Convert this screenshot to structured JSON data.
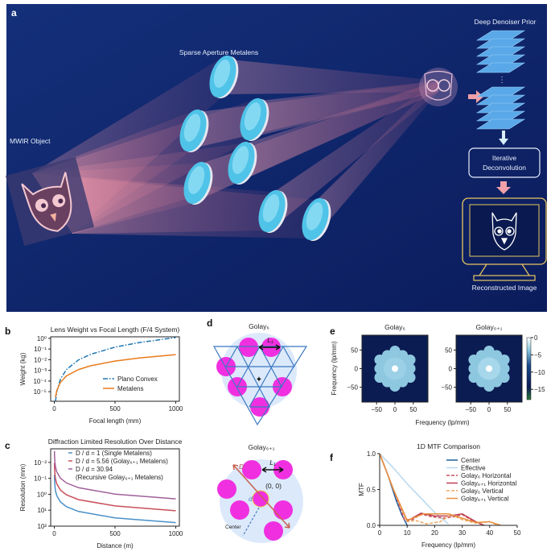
{
  "panel_a": {
    "label": "a",
    "object_label": "MWIR Object",
    "lens_label": "Sparse Aperture Metalens",
    "prior_label": "Deep Denoiser Prior",
    "ellipsis": "⋮",
    "deconv_label_1": "Iterative",
    "deconv_label_2": "Deconvolution",
    "output_label": "Reconstructed Image",
    "colors": {
      "background": "#10246a",
      "lens": "#4fc3e8",
      "arrow": "#f0a0a8",
      "monitor": "#e8c860",
      "layer": "#5aa8e8"
    }
  },
  "panel_d": {
    "label": "d",
    "golay6_title": "Golay₆",
    "golay61_title": "Golay₆₊₁",
    "l1_label": "L₁",
    "origin_label": "(0, 0)",
    "D_label": "D",
    "d_label": "d",
    "center_label": "Center",
    "colors": {
      "aperture": "#f030e0",
      "disk": "#dce9fb",
      "grid": "#3a78c0",
      "diag": "#c86050"
    }
  },
  "chart_data": [
    {
      "id": "b",
      "panel_label": "b",
      "type": "line",
      "title": "Lens Weight vs Focal Length (F/4 System)",
      "xlabel": "Focal length (mm)",
      "ylabel": "Weight (kg)",
      "xlim": [
        -30,
        1030
      ],
      "ylim": [
        1.26e-06,
        1.4
      ],
      "yscale": "log",
      "xticks": [
        {
          "v": 0,
          "t": "0"
        },
        {
          "v": 500,
          "t": "500"
        },
        {
          "v": 1000,
          "t": "1000"
        }
      ],
      "yticks": [
        {
          "v": 1,
          "t": "10⁰"
        },
        {
          "v": 0.1,
          "t": "10⁻¹"
        },
        {
          "v": 0.01,
          "t": "10⁻²"
        },
        {
          "v": 0.001,
          "t": "10⁻³"
        },
        {
          "v": 0.0001,
          "t": "10⁻⁴"
        },
        {
          "v": 1e-05,
          "t": "10⁻⁵"
        }
      ],
      "legend": "bottom-right",
      "series": [
        {
          "name": "Plano Convex",
          "color": "#1f77b4",
          "dash": "dashdot",
          "x": [
            10,
            20,
            50,
            100,
            200,
            300,
            500,
            700,
            1000
          ],
          "y": [
            1.2e-06,
            9.6e-06,
            0.00015,
            0.0012,
            0.0096,
            0.032,
            0.15,
            0.41,
            1.2
          ]
        },
        {
          "name": "Metalens",
          "color": "#e87b1c",
          "dash": "solid",
          "x": [
            10,
            20,
            50,
            100,
            200,
            300,
            500,
            700,
            1000
          ],
          "y": [
            3e-06,
            1.2e-05,
            7.5e-05,
            0.0003,
            0.0012,
            0.0027,
            0.0075,
            0.0147,
            0.03
          ]
        }
      ]
    },
    {
      "id": "c",
      "panel_label": "c",
      "type": "line",
      "title": "Diffraction Limited Resolution Over Distance",
      "xlabel": "Distance (m)",
      "ylabel": "Resolution (mm)",
      "xlim": [
        -30,
        1030
      ],
      "ylim": [
        0.0014,
        100
      ],
      "yscale": "log",
      "yinverted": true,
      "xticks": [
        {
          "v": 0,
          "t": "0"
        },
        {
          "v": 500,
          "t": "500"
        },
        {
          "v": 1000,
          "t": "1000"
        }
      ],
      "yticks": [
        {
          "v": 0.01,
          "t": "10⁻²"
        },
        {
          "v": 0.1,
          "t": "10⁻¹"
        },
        {
          "v": 1,
          "t": "10⁰"
        },
        {
          "v": 10,
          "t": "10¹"
        },
        {
          "v": 100,
          "t": "10²"
        }
      ],
      "legend": "top-right",
      "series": [
        {
          "name": "D / d = 1 (Single Metalens)",
          "color": "#4a90c8",
          "dash": "solid",
          "x": [
            1,
            2,
            5,
            10,
            20,
            50,
            100,
            200,
            500,
            1000
          ],
          "y": [
            0.06,
            0.12,
            0.3,
            0.6,
            1.2,
            3,
            6,
            12,
            30,
            60
          ]
        },
        {
          "name": "D / d = 5.56 (Golay₆₊₁ Metalens)",
          "color": "#c8505a",
          "dash": "solid",
          "x": [
            1,
            2,
            5,
            10,
            20,
            50,
            100,
            200,
            500,
            1000
          ],
          "y": [
            0.0108,
            0.0216,
            0.054,
            0.108,
            0.216,
            0.54,
            1.08,
            2.16,
            5.4,
            10.8
          ]
        },
        {
          "name": "D / d = 30.94",
          "name_line2": "(Recursive Golay₆₊₁ Metalens)",
          "color": "#a0609a",
          "dash": "solid",
          "x": [
            1,
            2,
            5,
            10,
            20,
            50,
            100,
            200,
            500,
            1000
          ],
          "y": [
            0.00194,
            0.00388,
            0.0097,
            0.0194,
            0.0388,
            0.097,
            0.194,
            0.388,
            0.97,
            1.94
          ]
        }
      ]
    },
    {
      "id": "e",
      "panel_label": "e",
      "type": "heatmap",
      "titles": [
        "Golay₆",
        "Golay₆₊₁"
      ],
      "xlabel": "Frequency (lp/mm)",
      "ylabel": "Frequency (lp/mm)",
      "xlim": [
        -90,
        90
      ],
      "ylim": [
        -90,
        90
      ],
      "xticks": [
        {
          "v": -50,
          "t": "−50"
        },
        {
          "v": 0,
          "t": "0"
        },
        {
          "v": 50,
          "t": "50"
        }
      ],
      "yticks": [
        {
          "v": 50,
          "t": "50"
        },
        {
          "v": 0,
          "t": "0"
        },
        {
          "v": -50,
          "t": "−50"
        }
      ],
      "colorbar": {
        "range": [
          -18,
          0
        ],
        "ticks": [
          {
            "v": 0,
            "t": "0"
          },
          {
            "v": -5,
            "t": "−5"
          },
          {
            "v": -10,
            "t": "−10"
          },
          {
            "v": -15,
            "t": "−15"
          }
        ],
        "colors": [
          "#2a7a3a",
          "#0b1a55",
          "#1a4a8a",
          "#8ac8e0",
          "#ffffff"
        ]
      }
    },
    {
      "id": "f",
      "panel_label": "f",
      "type": "line",
      "title": "1D MTF Comparison",
      "xlabel": "Frequency (lp/mm)",
      "ylabel": "MTF",
      "xlim": [
        0,
        50
      ],
      "ylim": [
        0,
        1
      ],
      "yscale": "linear",
      "xticks": [
        {
          "v": 0,
          "t": "0"
        },
        {
          "v": 10,
          "t": "10"
        },
        {
          "v": 20,
          "t": "20"
        },
        {
          "v": 30,
          "t": "30"
        },
        {
          "v": 40,
          "t": "40"
        },
        {
          "v": 50,
          "t": "50"
        }
      ],
      "yticks": [
        {
          "v": 0,
          "t": "0.0"
        },
        {
          "v": 0.5,
          "t": "0.5"
        },
        {
          "v": 1,
          "t": "1.0"
        }
      ],
      "legend": "top-right",
      "series": [
        {
          "name": "Center",
          "color": "#1f5f9a",
          "dash": "solid",
          "x": [
            0,
            3,
            6,
            8,
            10
          ],
          "y": [
            1,
            0.7,
            0.35,
            0.15,
            0
          ]
        },
        {
          "name": "Effective",
          "color": "#b8d8ee",
          "dash": "solid",
          "x": [
            0,
            5,
            10,
            15,
            20,
            25
          ],
          "y": [
            1,
            0.8,
            0.58,
            0.38,
            0.18,
            0.02
          ]
        },
        {
          "name": "Golay₆ Horizontal",
          "color": "#c8505a",
          "dash": "dashed",
          "x": [
            0,
            5,
            9,
            12,
            15,
            19,
            23,
            27,
            30,
            34,
            38
          ],
          "y": [
            1,
            0.5,
            0.08,
            0.08,
            0.16,
            0.12,
            0.1,
            0.12,
            0.15,
            0.06,
            0
          ]
        },
        {
          "name": "Golay₆₊₁ Horizontal",
          "color": "#c04050",
          "dash": "solid",
          "x": [
            0,
            5,
            10,
            15,
            20,
            25,
            30,
            35,
            38
          ],
          "y": [
            1,
            0.5,
            0.06,
            0.17,
            0.13,
            0.13,
            0.16,
            0.05,
            0
          ]
        },
        {
          "name": "Golay₆ Vertical",
          "color": "#f0a860",
          "dash": "dashed",
          "x": [
            0,
            5,
            10,
            13,
            17,
            22,
            26,
            30,
            35,
            40,
            43
          ],
          "y": [
            1,
            0.5,
            0.05,
            0.07,
            0.02,
            0.05,
            0.15,
            0.08,
            0.03,
            0.05,
            0
          ]
        },
        {
          "name": "Golay₆₊₁ Vertical",
          "color": "#e89040",
          "dash": "solid",
          "x": [
            0,
            5,
            10,
            16,
            20,
            25,
            30,
            35,
            40,
            44
          ],
          "y": [
            1,
            0.5,
            0.07,
            0.16,
            0.16,
            0.16,
            0.1,
            0.04,
            0.05,
            0
          ]
        }
      ]
    }
  ]
}
